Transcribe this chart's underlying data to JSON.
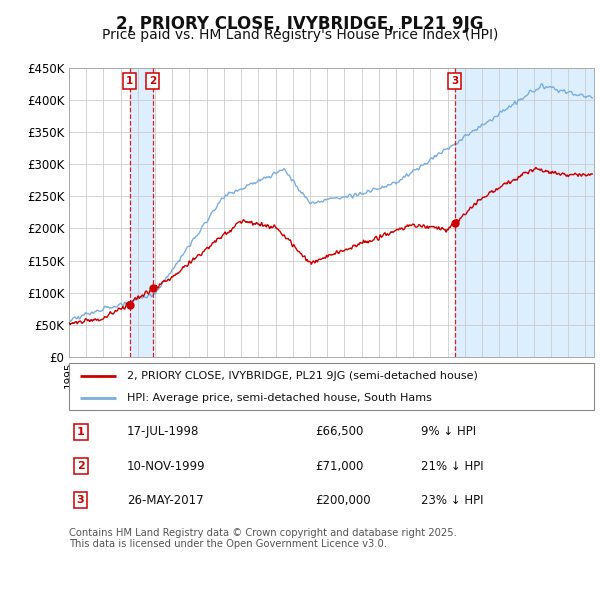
{
  "title": "2, PRIORY CLOSE, IVYBRIDGE, PL21 9JG",
  "subtitle": "Price paid vs. HM Land Registry's House Price Index (HPI)",
  "ylim": [
    0,
    450000
  ],
  "yticks": [
    0,
    50000,
    100000,
    150000,
    200000,
    250000,
    300000,
    350000,
    400000,
    450000
  ],
  "ytick_labels": [
    "£0",
    "£50K",
    "£100K",
    "£150K",
    "£200K",
    "£250K",
    "£300K",
    "£350K",
    "£400K",
    "£450K"
  ],
  "xlim_start": 1995.0,
  "xlim_end": 2025.5,
  "price_paid_color": "#cc0000",
  "hpi_color": "#7aaedc",
  "shade_color": "#ddeeff",
  "background_color": "#ffffff",
  "grid_color": "#cccccc",
  "transactions": [
    {
      "num": 1,
      "date_str": "17-JUL-1998",
      "date_x": 1998.54,
      "price": 66500,
      "label": "9% ↓ HPI"
    },
    {
      "num": 2,
      "date_str": "10-NOV-1999",
      "date_x": 1999.86,
      "price": 71000,
      "label": "21% ↓ HPI"
    },
    {
      "num": 3,
      "date_str": "26-MAY-2017",
      "date_x": 2017.4,
      "price": 200000,
      "label": "23% ↓ HPI"
    }
  ],
  "legend_line1": "2, PRIORY CLOSE, IVYBRIDGE, PL21 9JG (semi-detached house)",
  "legend_line2": "HPI: Average price, semi-detached house, South Hams",
  "footnote": "Contains HM Land Registry data © Crown copyright and database right 2025.\nThis data is licensed under the Open Government Licence v3.0.",
  "title_fontsize": 12,
  "subtitle_fontsize": 10
}
